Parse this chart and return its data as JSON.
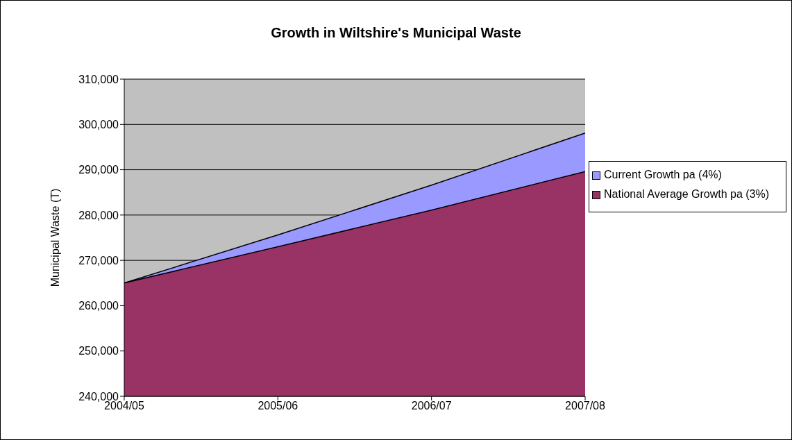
{
  "chart_data": {
    "type": "area",
    "title": "Growth in Wiltshire's Municipal Waste",
    "ylabel": "Municipal Waste (T)",
    "categories": [
      "2004/05",
      "2005/06",
      "2006/07",
      "2007/08"
    ],
    "series": [
      {
        "name": "Current Growth pa (4%)",
        "color": "#9999ff",
        "values": [
          265000,
          275600,
          286600,
          298100
        ]
      },
      {
        "name": "National Average Growth pa (3%)",
        "color": "#993366",
        "values": [
          265000,
          273000,
          281100,
          289600
        ]
      }
    ],
    "ylim": [
      240000,
      310000
    ],
    "yticks": [
      {
        "value": 240000,
        "label": "240,000"
      },
      {
        "value": 250000,
        "label": "250,000"
      },
      {
        "value": 260000,
        "label": "260,000"
      },
      {
        "value": 270000,
        "label": "270,000"
      },
      {
        "value": 280000,
        "label": "280,000"
      },
      {
        "value": 290000,
        "label": "290,000"
      },
      {
        "value": 300000,
        "label": "300,000"
      },
      {
        "value": 310000,
        "label": "310,000"
      }
    ],
    "grid": "y",
    "legend": "right"
  }
}
